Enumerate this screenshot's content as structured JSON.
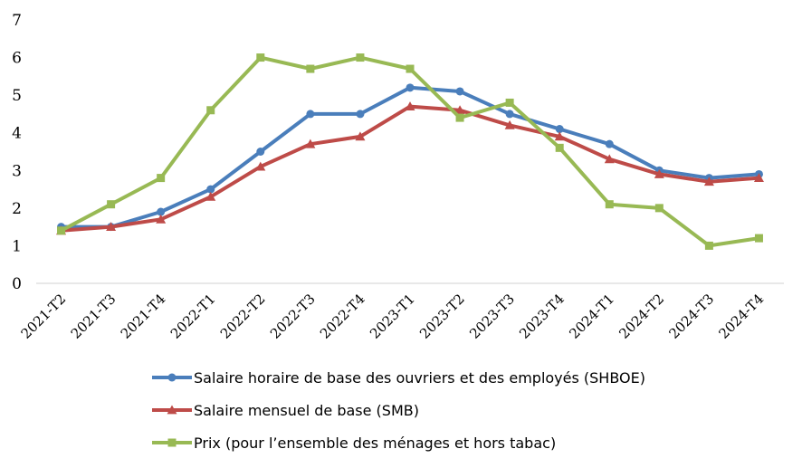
{
  "chart_data": {
    "type": "line",
    "title": "",
    "xlabel": "",
    "ylabel": "",
    "ylim": [
      0,
      7
    ],
    "yticks": [
      "0",
      "1",
      "2",
      "3",
      "4",
      "5",
      "6",
      "7"
    ],
    "grid": false,
    "legend_position": "bottom",
    "categories": [
      "2021-T2",
      "2021-T3",
      "2021-T4",
      "2022-T1",
      "2022-T2",
      "2022-T3",
      "2022-T4",
      "2023-T1",
      "2023-T2",
      "2023-T3",
      "2023-T4",
      "2024-T1",
      "2024-T2",
      "2024-T3",
      "2024-T4"
    ],
    "series": [
      {
        "name": "Salaire horaire de base des ouvriers et des employés (SHBOE)",
        "color": "#4a7ebb",
        "marker": "circle",
        "values": [
          1.5,
          1.5,
          1.9,
          2.5,
          3.5,
          4.5,
          4.5,
          5.2,
          5.1,
          4.5,
          4.1,
          3.7,
          3.0,
          2.8,
          2.9
        ]
      },
      {
        "name": "Salaire mensuel de base (SMB)",
        "color": "#be4b48",
        "marker": "triangle",
        "values": [
          1.4,
          1.5,
          1.7,
          2.3,
          3.1,
          3.7,
          3.9,
          4.7,
          4.6,
          4.2,
          3.9,
          3.3,
          2.9,
          2.7,
          2.8
        ]
      },
      {
        "name": "Prix (pour l’ensemble des ménages et hors tabac)",
        "color": "#98b954",
        "marker": "square",
        "values": [
          1.4,
          2.1,
          2.8,
          4.6,
          6.0,
          5.7,
          6.0,
          5.7,
          4.4,
          4.8,
          3.6,
          2.1,
          2.0,
          1.0,
          1.2
        ]
      }
    ]
  }
}
